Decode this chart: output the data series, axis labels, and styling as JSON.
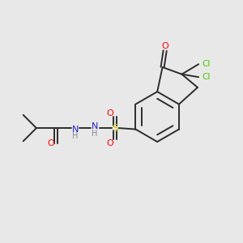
{
  "background_color": "#e8e8e8",
  "bond_color": "#2d2d2d",
  "figsize": [
    3.0,
    3.0
  ],
  "dpi": 100,
  "xlim": [
    0,
    10
  ],
  "ylim": [
    0,
    10
  ],
  "colors": {
    "O": "#ff0000",
    "S": "#cccc00",
    "Cl": "#44cc00",
    "N": "#2222cc",
    "C": "#2d2d2d"
  }
}
